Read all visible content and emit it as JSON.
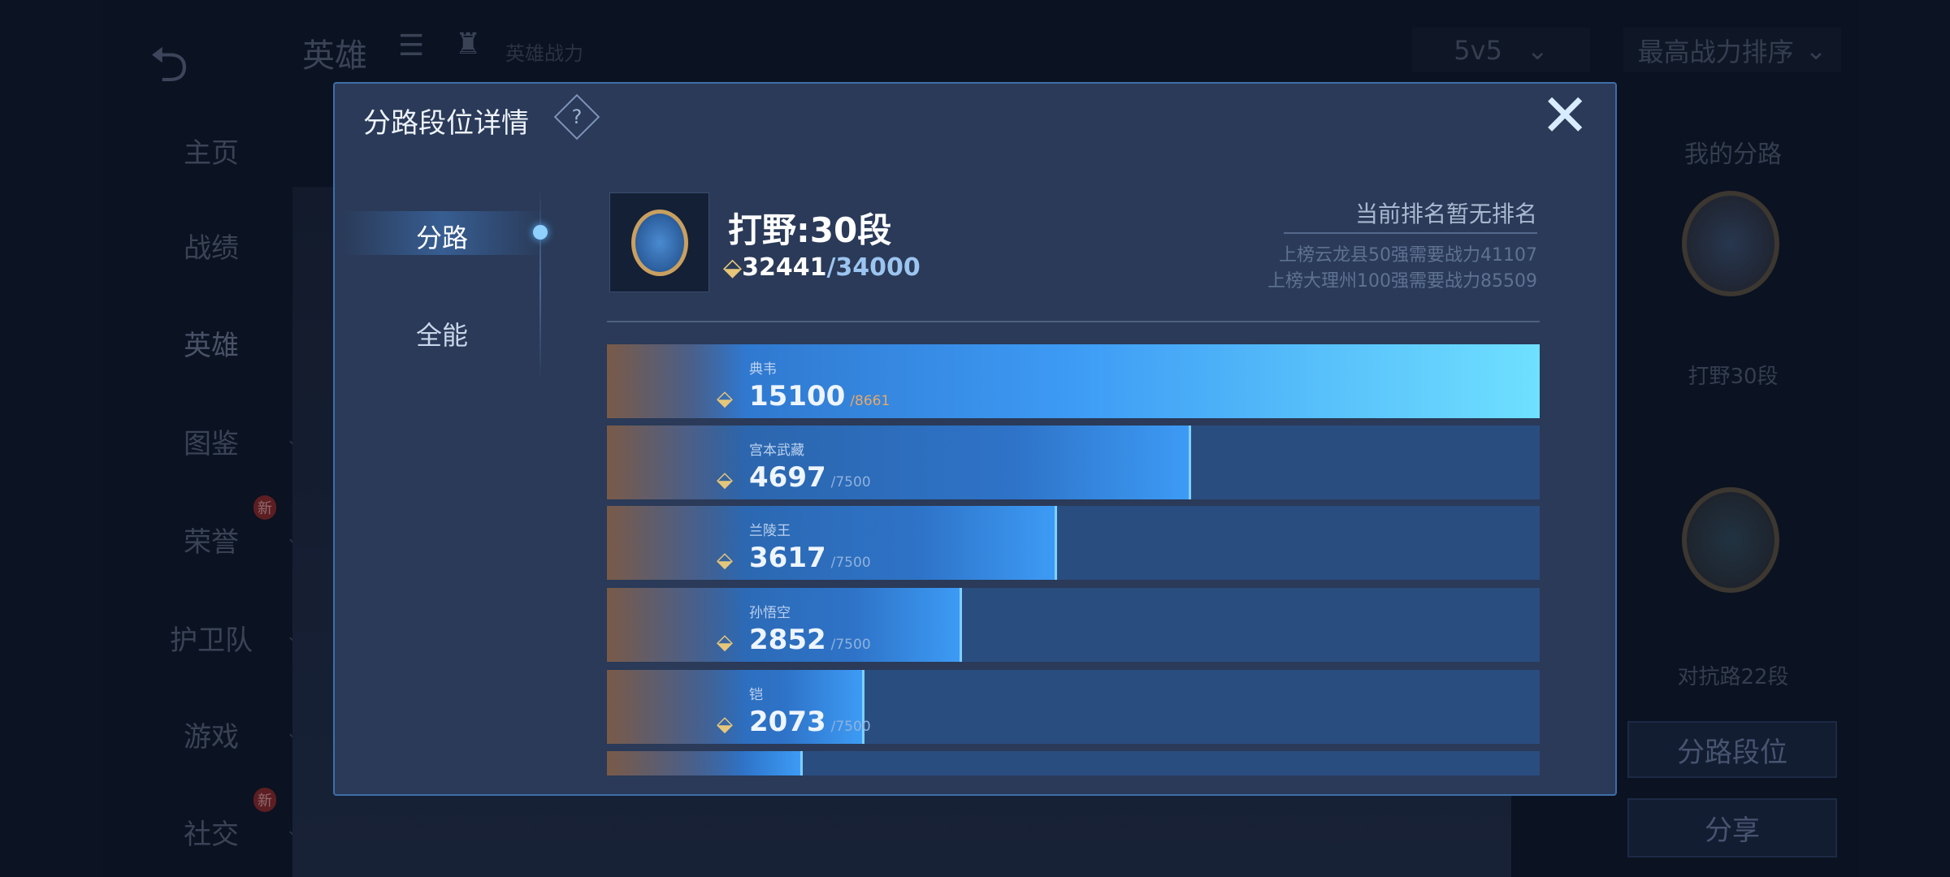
{
  "nav": {
    "back_icon": "back-arrow-icon",
    "items": [
      {
        "label": "主页"
      },
      {
        "label": "战绩"
      },
      {
        "label": "英雄",
        "active": true
      },
      {
        "label": "图鉴",
        "chevron": true
      },
      {
        "label": "荣誉",
        "chevron": true,
        "badge": "新"
      },
      {
        "label": "护卫队",
        "chevron": true
      },
      {
        "label": "游戏",
        "chevron": true
      },
      {
        "label": "社交",
        "chevron": true,
        "badge": "新"
      }
    ]
  },
  "header": {
    "title": "英雄",
    "subtitle": "英雄战力",
    "mode": "5v5",
    "sort": "最高战力排序"
  },
  "right": {
    "title": "我的分路",
    "lane1": "打野30段",
    "lane2": "对抗路22段",
    "lane_button": "分路段位",
    "share_button": "分享"
  },
  "modal": {
    "title": "分路段位详情",
    "tabs": [
      {
        "label": "分路",
        "active": true
      },
      {
        "label": "全能"
      }
    ],
    "lane": {
      "title": "打野:30段",
      "score": "32441",
      "target": "/34000",
      "rank_status": "当前排名暂无排名",
      "req1": "上榜云龙县50强需要战力41107",
      "req2": "上榜大理州100强需要战力85509"
    },
    "heroes": [
      {
        "name": "典韦",
        "value": 15100,
        "max": "/8661",
        "max_color": "#e8a868"
      },
      {
        "name": "宫本武藏",
        "value": 4697,
        "max": "/7500"
      },
      {
        "name": "兰陵王",
        "value": 3617,
        "max": "/7500"
      },
      {
        "name": "孙悟空",
        "value": 2852,
        "max": "/7500"
      },
      {
        "name": "铠",
        "value": 2073,
        "max": "/7500"
      },
      {
        "name": "",
        "progress": 0.21
      }
    ]
  },
  "colors": {
    "accent": "#3d9bf5",
    "bg": "#0f1829",
    "modal": "#2a3a58"
  }
}
